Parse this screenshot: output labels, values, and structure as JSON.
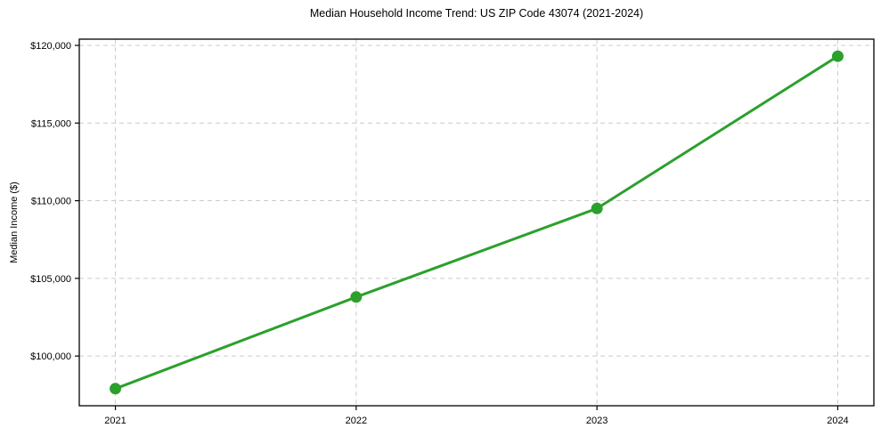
{
  "chart_data": {
    "type": "line",
    "title": "Median Household Income Trend: US ZIP Code 43074 (2021-2024)",
    "xlabel": "",
    "ylabel": "Median Income ($)",
    "x": [
      2021,
      2022,
      2023,
      2024
    ],
    "series": [
      {
        "name": "Median Household Income",
        "values": [
          97900,
          103800,
          109500,
          119300
        ]
      }
    ],
    "xlim": [
      2020.85,
      2024.15
    ],
    "ylim": [
      96800,
      120400
    ],
    "xticks": [
      2021,
      2022,
      2023,
      2024
    ],
    "xtick_labels": [
      "2021",
      "2022",
      "2023",
      "2024"
    ],
    "yticks": [
      100000,
      105000,
      110000,
      115000,
      120000
    ],
    "ytick_labels": [
      "$100,000",
      "$105,000",
      "$110,000",
      "$115,000",
      "$120,000"
    ],
    "grid": true,
    "grid_style": "dashed",
    "legend": false,
    "marker": "circle",
    "styles": {
      "line_color": "#2ca02c",
      "marker_color": "#2ca02c",
      "grid_color": "#cccccc",
      "axis_color": "#000000",
      "text_color": "#000000",
      "background": "#ffffff"
    }
  }
}
